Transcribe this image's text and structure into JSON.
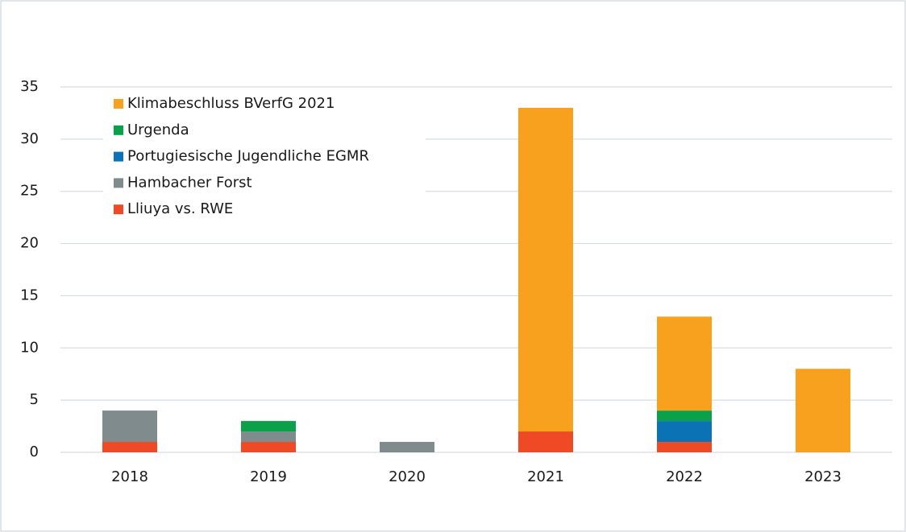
{
  "chart_data": {
    "type": "stacked_bar",
    "categories": [
      "2018",
      "2019",
      "2020",
      "2021",
      "2022",
      "2023"
    ],
    "series": [
      {
        "name": "Lliuya vs. RWE",
        "color": "#ee4a25",
        "values": [
          1,
          1,
          0,
          2,
          1,
          0
        ]
      },
      {
        "name": "Hambacher Forst",
        "color": "#808b8e",
        "values": [
          3,
          1,
          1,
          0,
          0,
          0
        ]
      },
      {
        "name": "Portugiesische Jugendliche EGMR",
        "color": "#0b72b5",
        "values": [
          0,
          0,
          0,
          0,
          2,
          0
        ]
      },
      {
        "name": "Urgenda",
        "color": "#0ba14b",
        "values": [
          0,
          1,
          0,
          0,
          1,
          0
        ]
      },
      {
        "name": "Klimabeschluss BVerfG 2021",
        "color": "#f8a11f",
        "values": [
          0,
          0,
          0,
          31,
          9,
          8
        ]
      }
    ],
    "ylim": [
      0,
      35
    ],
    "yticks": [
      0,
      5,
      10,
      15,
      20,
      25,
      30,
      35
    ],
    "grid": true,
    "legend": "upper left"
  }
}
